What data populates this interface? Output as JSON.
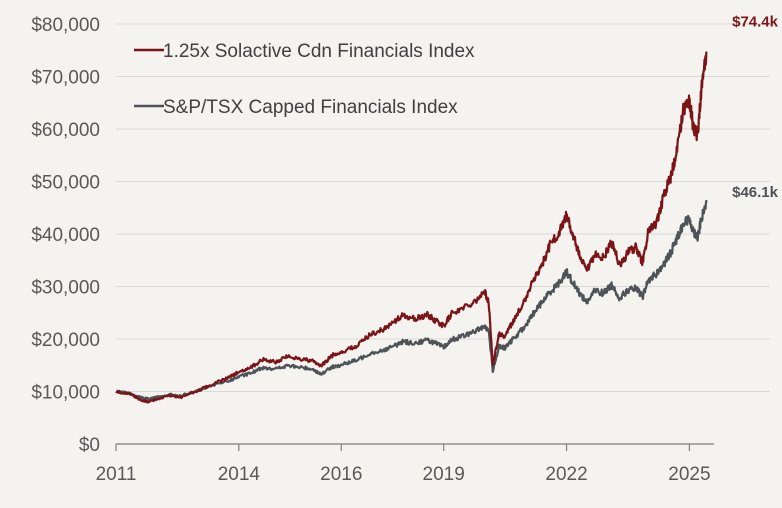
{
  "chart_data": {
    "type": "line",
    "title": "",
    "xlabel": "",
    "ylabel": "",
    "xlim": [
      2011.0,
      2025.6
    ],
    "ylim": [
      0,
      80000
    ],
    "y_ticks": [
      "$0",
      "$10,000",
      "$20,000",
      "$30,000",
      "$40,000",
      "$50,000",
      "$60,000",
      "$70,000",
      "$80,000"
    ],
    "y_tick_values": [
      0,
      10000,
      20000,
      30000,
      40000,
      50000,
      60000,
      70000,
      80000
    ],
    "x_ticks": [
      "2011",
      "2014",
      "2016",
      "2019",
      "2022",
      "2025"
    ],
    "x_tick_values": [
      2011.0,
      2014.0,
      2016.5,
      2019.0,
      2022.0,
      2025.0
    ],
    "grid": "horizontal",
    "legend_position": "top-left",
    "series": [
      {
        "name": "1.25x Solactive Cdn Financials Index",
        "color": "#7b1416",
        "end_label": "$74.4k",
        "points": [
          [
            2011.0,
            10000
          ],
          [
            2011.3,
            9600
          ],
          [
            2011.6,
            8400
          ],
          [
            2011.8,
            8000
          ],
          [
            2012.0,
            8600
          ],
          [
            2012.3,
            9200
          ],
          [
            2012.6,
            8900
          ],
          [
            2013.0,
            10200
          ],
          [
            2013.4,
            11500
          ],
          [
            2013.8,
            12800
          ],
          [
            2014.0,
            13700
          ],
          [
            2014.3,
            14700
          ],
          [
            2014.6,
            16100
          ],
          [
            2014.9,
            15600
          ],
          [
            2015.2,
            16700
          ],
          [
            2015.5,
            16200
          ],
          [
            2015.8,
            15800
          ],
          [
            2016.0,
            14800
          ],
          [
            2016.3,
            17000
          ],
          [
            2016.6,
            17800
          ],
          [
            2016.9,
            18800
          ],
          [
            2017.2,
            20900
          ],
          [
            2017.5,
            21700
          ],
          [
            2017.8,
            23300
          ],
          [
            2018.0,
            24500
          ],
          [
            2018.3,
            23800
          ],
          [
            2018.6,
            24600
          ],
          [
            2018.8,
            23500
          ],
          [
            2019.0,
            22500
          ],
          [
            2019.2,
            24900
          ],
          [
            2019.5,
            26000
          ],
          [
            2019.8,
            27500
          ],
          [
            2020.0,
            29000
          ],
          [
            2020.1,
            27000
          ],
          [
            2020.2,
            15000
          ],
          [
            2020.35,
            21000
          ],
          [
            2020.5,
            20500
          ],
          [
            2020.7,
            23500
          ],
          [
            2021.0,
            27500
          ],
          [
            2021.2,
            31500
          ],
          [
            2021.4,
            34000
          ],
          [
            2021.6,
            38000
          ],
          [
            2021.8,
            40000
          ],
          [
            2022.0,
            43500
          ],
          [
            2022.15,
            40000
          ],
          [
            2022.35,
            35000
          ],
          [
            2022.5,
            33000
          ],
          [
            2022.7,
            36000
          ],
          [
            2022.9,
            35500
          ],
          [
            2023.1,
            38500
          ],
          [
            2023.3,
            34000
          ],
          [
            2023.5,
            36500
          ],
          [
            2023.7,
            37500
          ],
          [
            2023.85,
            34500
          ],
          [
            2024.0,
            40500
          ],
          [
            2024.2,
            42000
          ],
          [
            2024.4,
            48000
          ],
          [
            2024.55,
            51000
          ],
          [
            2024.7,
            56000
          ],
          [
            2024.85,
            63500
          ],
          [
            2025.0,
            65500
          ],
          [
            2025.1,
            60000
          ],
          [
            2025.2,
            59000
          ],
          [
            2025.3,
            68000
          ],
          [
            2025.42,
            74400
          ]
        ]
      },
      {
        "name": "S&P/TSX Capped Financials Index",
        "color": "#4d5356",
        "end_label": "$46.1k",
        "points": [
          [
            2011.0,
            10000
          ],
          [
            2011.3,
            9700
          ],
          [
            2011.6,
            8900
          ],
          [
            2011.8,
            8600
          ],
          [
            2012.0,
            8900
          ],
          [
            2012.3,
            9400
          ],
          [
            2012.6,
            9200
          ],
          [
            2013.0,
            10200
          ],
          [
            2013.4,
            11200
          ],
          [
            2013.8,
            12200
          ],
          [
            2014.0,
            12800
          ],
          [
            2014.3,
            13500
          ],
          [
            2014.6,
            14600
          ],
          [
            2014.9,
            14300
          ],
          [
            2015.2,
            14900
          ],
          [
            2015.5,
            14600
          ],
          [
            2015.8,
            14300
          ],
          [
            2016.0,
            13300
          ],
          [
            2016.3,
            14700
          ],
          [
            2016.6,
            15300
          ],
          [
            2016.9,
            16000
          ],
          [
            2017.2,
            17300
          ],
          [
            2017.5,
            17800
          ],
          [
            2017.8,
            18700
          ],
          [
            2018.0,
            19500
          ],
          [
            2018.3,
            19200
          ],
          [
            2018.6,
            19800
          ],
          [
            2018.8,
            19200
          ],
          [
            2019.0,
            18400
          ],
          [
            2019.2,
            19900
          ],
          [
            2019.5,
            20600
          ],
          [
            2019.8,
            21600
          ],
          [
            2020.0,
            22500
          ],
          [
            2020.1,
            21500
          ],
          [
            2020.2,
            14000
          ],
          [
            2020.35,
            18500
          ],
          [
            2020.5,
            18300
          ],
          [
            2020.7,
            20000
          ],
          [
            2021.0,
            22500
          ],
          [
            2021.2,
            25000
          ],
          [
            2021.4,
            27000
          ],
          [
            2021.6,
            29000
          ],
          [
            2021.8,
            30500
          ],
          [
            2022.0,
            32800
          ],
          [
            2022.15,
            30800
          ],
          [
            2022.35,
            28400
          ],
          [
            2022.5,
            27000
          ],
          [
            2022.7,
            29300
          ],
          [
            2022.9,
            28700
          ],
          [
            2023.1,
            30300
          ],
          [
            2023.3,
            27800
          ],
          [
            2023.5,
            29300
          ],
          [
            2023.7,
            29600
          ],
          [
            2023.85,
            28000
          ],
          [
            2024.0,
            31200
          ],
          [
            2024.2,
            32500
          ],
          [
            2024.4,
            34500
          ],
          [
            2024.55,
            36500
          ],
          [
            2024.7,
            39300
          ],
          [
            2024.85,
            42000
          ],
          [
            2025.0,
            42800
          ],
          [
            2025.1,
            40500
          ],
          [
            2025.2,
            39500
          ],
          [
            2025.3,
            43000
          ],
          [
            2025.42,
            46100
          ]
        ]
      }
    ]
  }
}
